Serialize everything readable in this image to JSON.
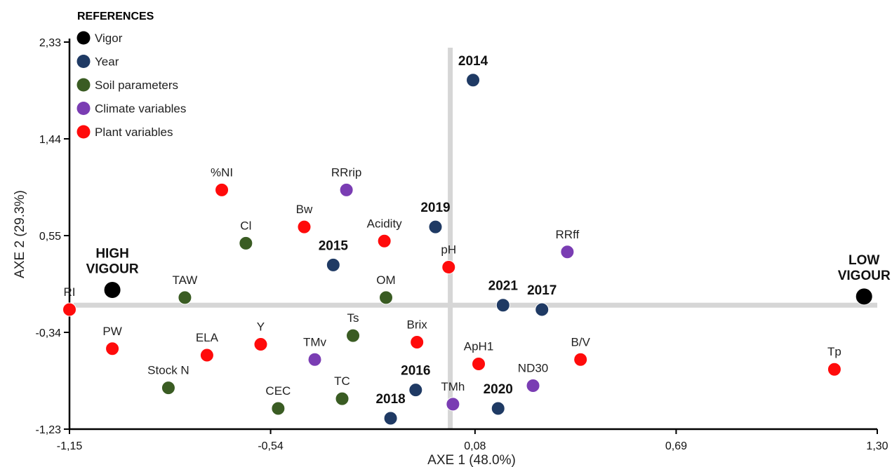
{
  "chart_data": {
    "type": "scatter",
    "xlabel": "AXE 1 (48.0%)",
    "ylabel": "AXE 2 (29.3%)",
    "xlim": [
      -1.15,
      1.3
    ],
    "ylim": [
      -1.23,
      2.33
    ],
    "x_ticks": [
      {
        "value": -1.15,
        "label": "-1,15"
      },
      {
        "value": -0.54,
        "label": "-0,54"
      },
      {
        "value": 0.08,
        "label": "0,08"
      },
      {
        "value": 0.69,
        "label": "0,69"
      },
      {
        "value": 1.3,
        "label": "1,30"
      }
    ],
    "y_ticks": [
      {
        "value": 2.33,
        "label": "2,33"
      },
      {
        "value": 1.44,
        "label": "1,44"
      },
      {
        "value": 0.55,
        "label": "0,55"
      },
      {
        "value": -0.34,
        "label": "-0,34"
      },
      {
        "value": -1.23,
        "label": "-1,23"
      }
    ],
    "grid": false,
    "reference_lines": {
      "x": 0.005,
      "y": -0.09
    },
    "colors": {
      "vigor": "#000000",
      "year": "#1f3a64",
      "soil": "#3a5c23",
      "climate": "#7a3db3",
      "plant": "#ff0b0b",
      "ref_line": "#d6d6d6"
    },
    "legend": {
      "title": "REFERENCES",
      "position": "top-left",
      "items": [
        {
          "group": "vigor",
          "label": "Vigor"
        },
        {
          "group": "year",
          "label": "Year"
        },
        {
          "group": "soil",
          "label": "Soil parameters"
        },
        {
          "group": "climate",
          "label": "Climate variables"
        },
        {
          "group": "plant",
          "label": "Plant  variables"
        }
      ]
    },
    "points": [
      {
        "label": "HIGH|VIGOUR",
        "group": "vigor",
        "x": -1.02,
        "y": 0.05,
        "label_pos": "above",
        "bold": true
      },
      {
        "label": "LOW|VIGOUR",
        "group": "vigor",
        "x": 1.26,
        "y": -0.01,
        "label_pos": "above",
        "bold": true
      },
      {
        "label": "2014",
        "group": "year",
        "x": 0.074,
        "y": 1.98,
        "label_pos": "above",
        "bold": true
      },
      {
        "label": "2019",
        "group": "year",
        "x": -0.04,
        "y": 0.63,
        "label_pos": "above",
        "bold": true
      },
      {
        "label": "2015",
        "group": "year",
        "x": -0.35,
        "y": 0.28,
        "label_pos": "above",
        "bold": true
      },
      {
        "label": "2021",
        "group": "year",
        "x": 0.165,
        "y": -0.09,
        "label_pos": "above",
        "bold": true
      },
      {
        "label": "2017",
        "group": "year",
        "x": 0.283,
        "y": -0.13,
        "label_pos": "above",
        "bold": true
      },
      {
        "label": "2016",
        "group": "year",
        "x": -0.1,
        "y": -0.87,
        "label_pos": "above",
        "bold": true
      },
      {
        "label": "2018",
        "group": "year",
        "x": -0.176,
        "y": -1.13,
        "label_pos": "above",
        "bold": true
      },
      {
        "label": "2020",
        "group": "year",
        "x": 0.15,
        "y": -1.04,
        "label_pos": "above",
        "bold": true
      },
      {
        "label": "Cl",
        "group": "soil",
        "x": -0.615,
        "y": 0.48,
        "label_pos": "above"
      },
      {
        "label": "TAW",
        "group": "soil",
        "x": -0.8,
        "y": -0.02,
        "label_pos": "above"
      },
      {
        "label": "OM",
        "group": "soil",
        "x": -0.19,
        "y": -0.02,
        "label_pos": "above"
      },
      {
        "label": "Ts",
        "group": "soil",
        "x": -0.29,
        "y": -0.37,
        "label_pos": "above"
      },
      {
        "label": "Stock N",
        "group": "soil",
        "x": -0.85,
        "y": -0.85,
        "label_pos": "above"
      },
      {
        "label": "CEC",
        "group": "soil",
        "x": -0.517,
        "y": -1.04,
        "label_pos": "above"
      },
      {
        "label": "TC",
        "group": "soil",
        "x": -0.323,
        "y": -0.95,
        "label_pos": "above"
      },
      {
        "label": "RRrip",
        "group": "climate",
        "x": -0.31,
        "y": 0.97,
        "label_pos": "above"
      },
      {
        "label": "RRff",
        "group": "climate",
        "x": 0.36,
        "y": 0.4,
        "label_pos": "above"
      },
      {
        "label": "TMv",
        "group": "climate",
        "x": -0.406,
        "y": -0.59,
        "label_pos": "above"
      },
      {
        "label": "TMh",
        "group": "climate",
        "x": 0.013,
        "y": -1.0,
        "label_pos": "above"
      },
      {
        "label": "ND30",
        "group": "climate",
        "x": 0.256,
        "y": -0.83,
        "label_pos": "above"
      },
      {
        "label": "%NI",
        "group": "plant",
        "x": -0.688,
        "y": 0.97,
        "label_pos": "above"
      },
      {
        "label": "Bw",
        "group": "plant",
        "x": -0.438,
        "y": 0.63,
        "label_pos": "above"
      },
      {
        "label": "Acidity",
        "group": "plant",
        "x": -0.195,
        "y": 0.5,
        "label_pos": "above"
      },
      {
        "label": "pH",
        "group": "plant",
        "x": 0.0,
        "y": 0.26,
        "label_pos": "above"
      },
      {
        "label": "RI",
        "group": "plant",
        "x": -1.15,
        "y": -0.13,
        "label_pos": "above"
      },
      {
        "label": "PW",
        "group": "plant",
        "x": -1.02,
        "y": -0.49,
        "label_pos": "above"
      },
      {
        "label": "ELA",
        "group": "plant",
        "x": -0.733,
        "y": -0.55,
        "label_pos": "above"
      },
      {
        "label": "Y",
        "group": "plant",
        "x": -0.57,
        "y": -0.45,
        "label_pos": "above"
      },
      {
        "label": "Brix",
        "group": "plant",
        "x": -0.096,
        "y": -0.43,
        "label_pos": "above"
      },
      {
        "label": "ApH1",
        "group": "plant",
        "x": 0.091,
        "y": -0.63,
        "label_pos": "above"
      },
      {
        "label": "B/V",
        "group": "plant",
        "x": 0.4,
        "y": -0.59,
        "label_pos": "above"
      },
      {
        "label": "Tp",
        "group": "plant",
        "x": 1.17,
        "y": -0.68,
        "label_pos": "above"
      }
    ]
  }
}
